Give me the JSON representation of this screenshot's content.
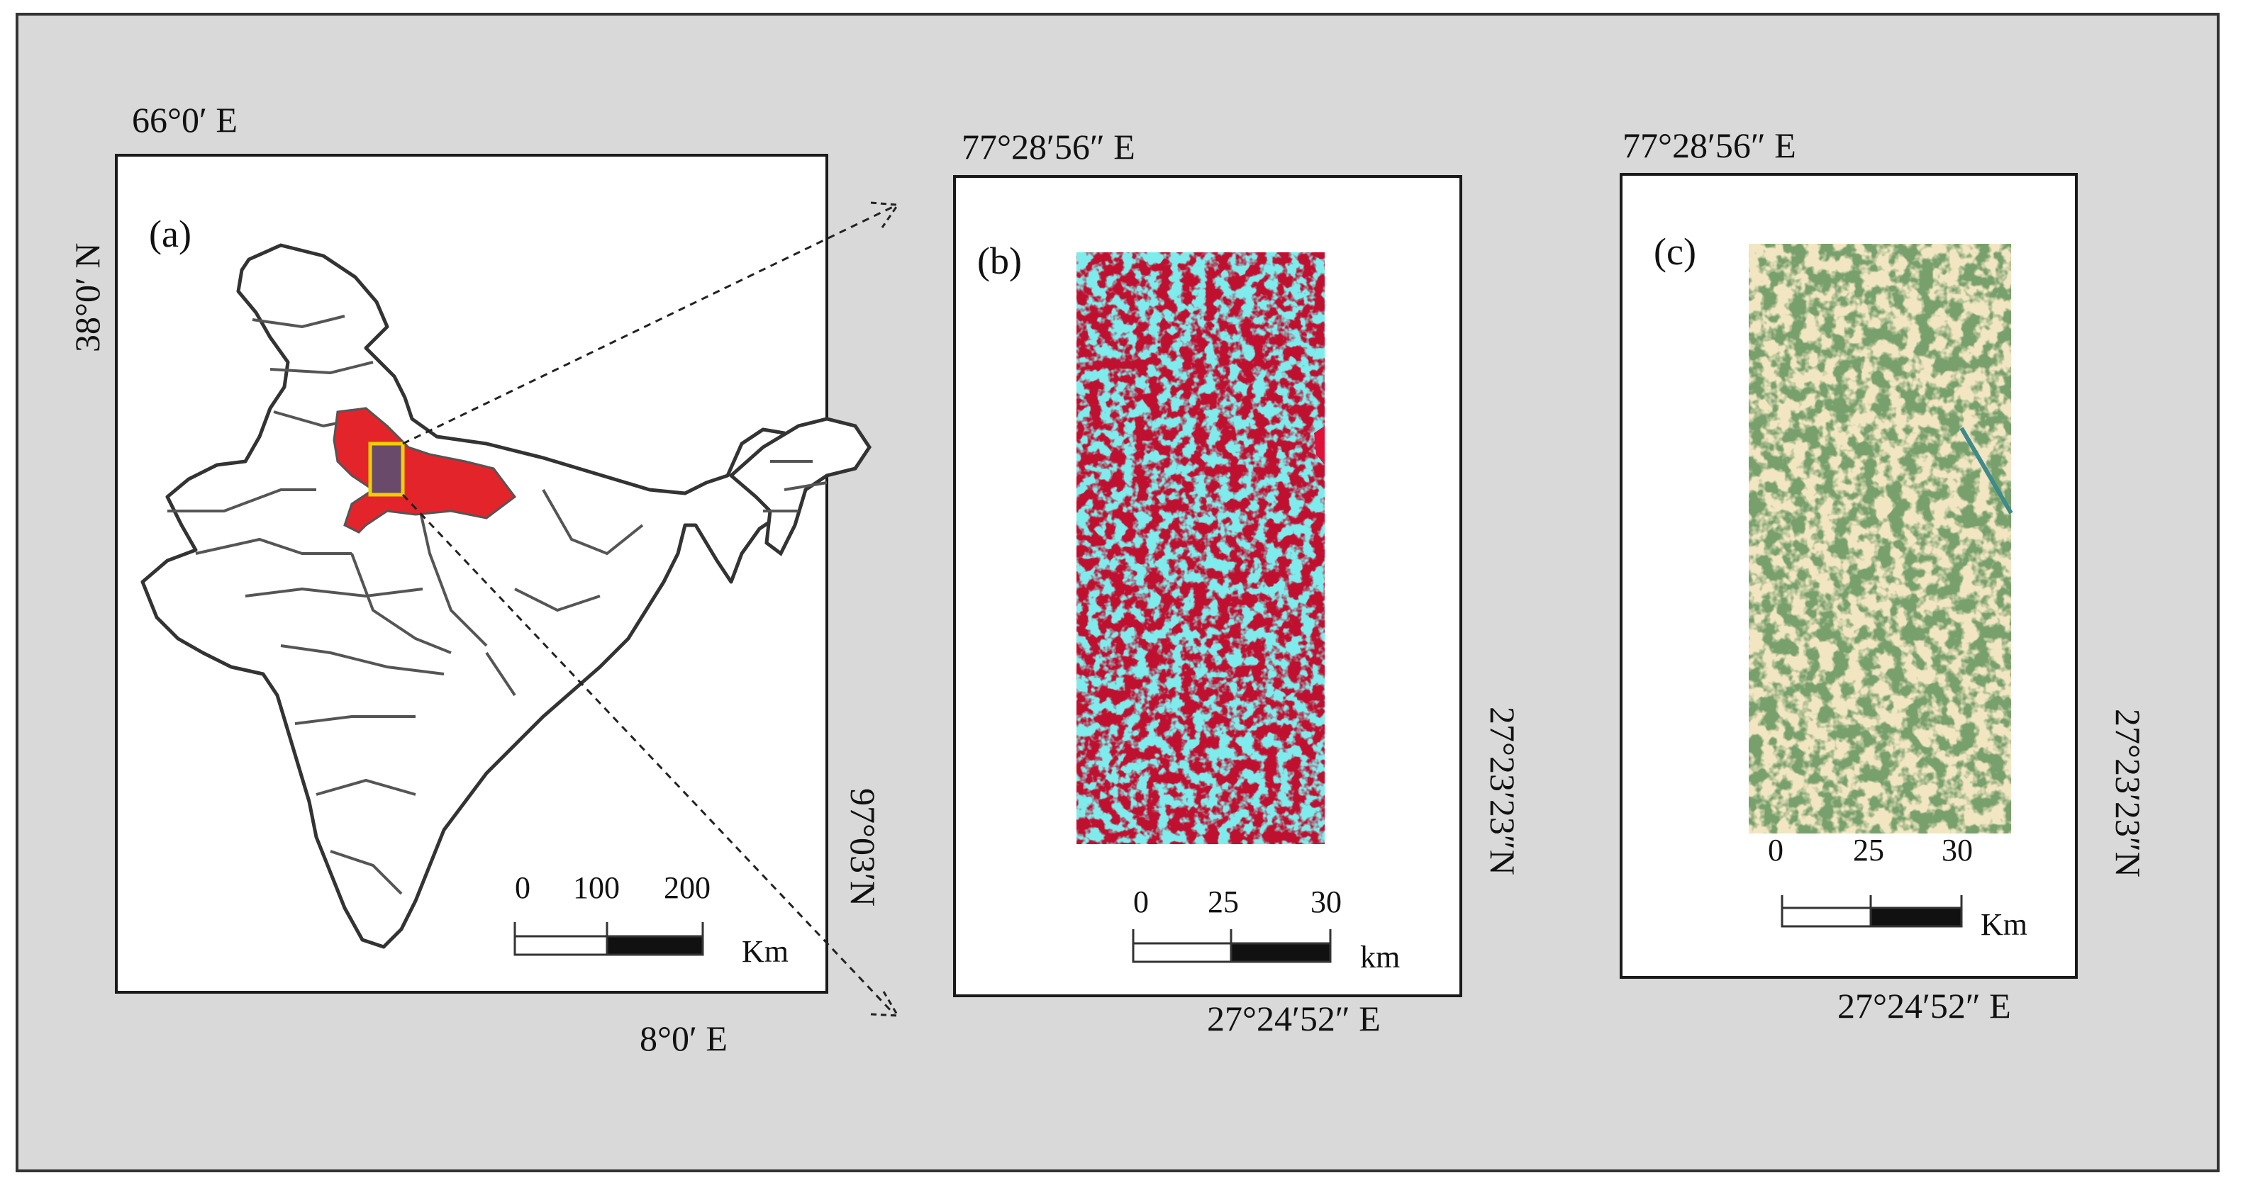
{
  "figure": {
    "panel_a": {
      "label": "(a)",
      "coord_top": "66°0′ E",
      "coord_left": "38°0′ N",
      "coord_right": "97°03′N",
      "coord_bottom": "8°0′ E",
      "scale": {
        "ticks": [
          "0",
          "100",
          "200"
        ],
        "unit": "Km"
      },
      "colors": {
        "highlight_state": "#e3242b",
        "boundary": "#333333",
        "study_box": "#f0d000"
      }
    },
    "panel_b": {
      "label": "(b)",
      "coord_top": "77°28′56″ E",
      "coord_right": "27°23′23″N",
      "coord_bottom": "27°24′52″ E",
      "scale": {
        "ticks": [
          "0",
          "25",
          "30"
        ],
        "unit": "km"
      },
      "colors": {
        "vegetation": "#d0122e",
        "bare": "#35d6d6"
      }
    },
    "panel_c": {
      "label": "(c)",
      "coord_top": "77°28′56″ E",
      "coord_right": "27°23′23″N",
      "coord_bottom": "27°24′52″ E",
      "scale": {
        "ticks": [
          "0",
          "25",
          "30"
        ],
        "unit": "Km"
      },
      "colors": {
        "vegetation": "#7aa06a",
        "bare": "#e2c98a"
      }
    }
  }
}
